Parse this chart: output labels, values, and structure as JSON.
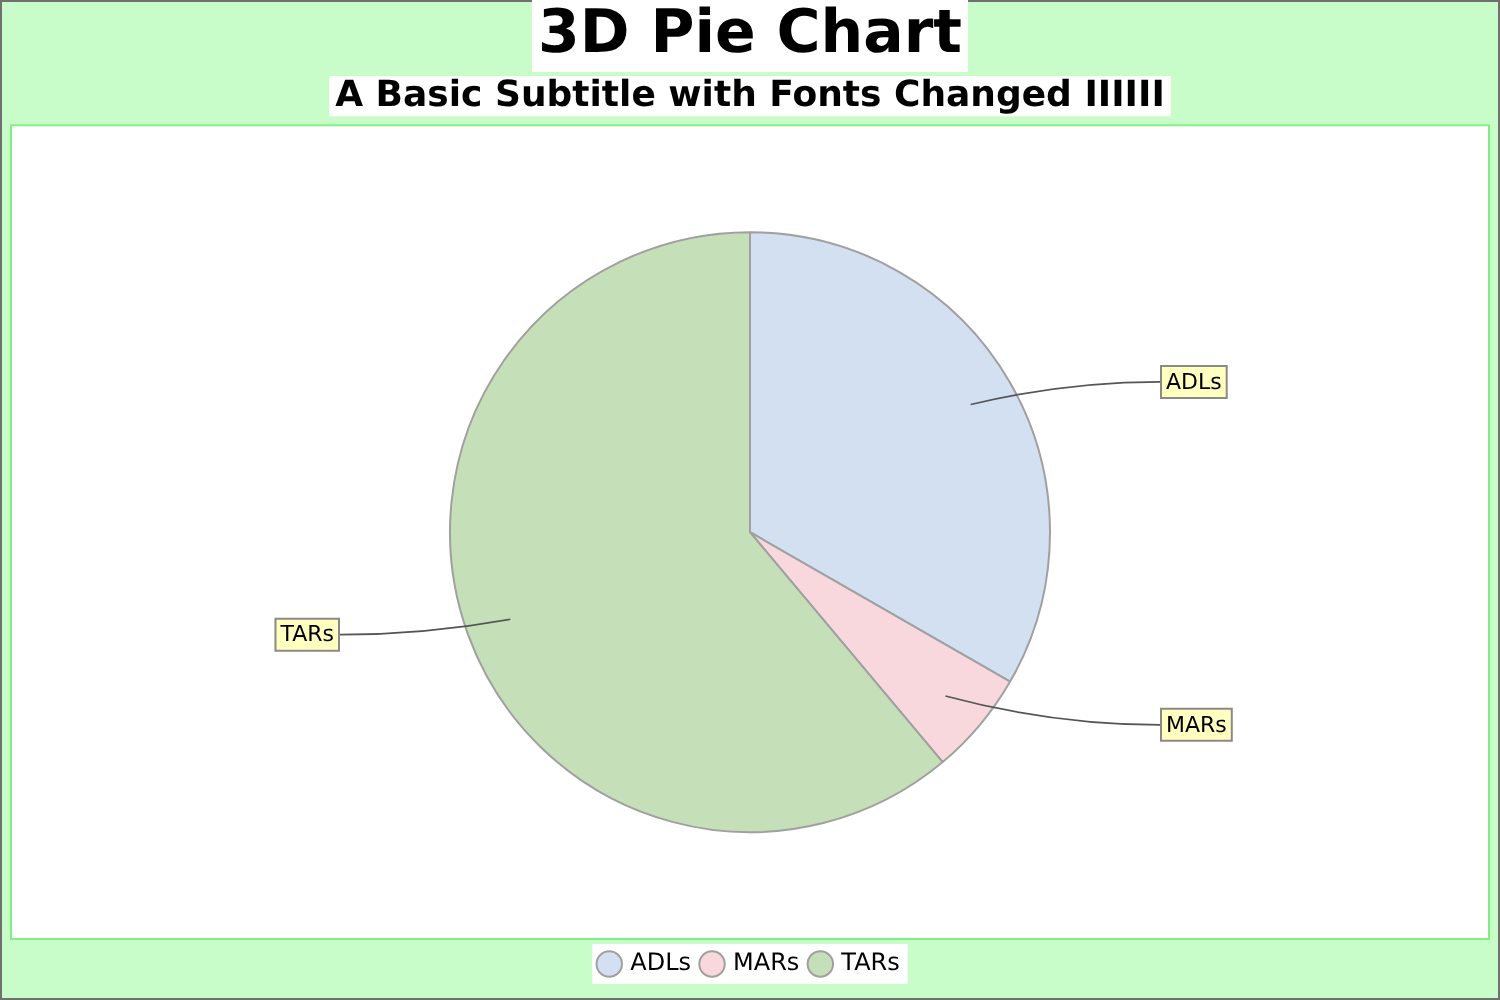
{
  "chart_data": {
    "type": "pie",
    "title": "3D Pie Chart",
    "subtitle": "A Basic Subtitle with Fonts Changed IIIIII",
    "categories": [
      "ADLs",
      "MARs",
      "TARs"
    ],
    "values": [
      33.3,
      5.6,
      61.1
    ],
    "colors": [
      "#d2e0f2",
      "#f8d8dc",
      "#c5dfb9"
    ],
    "legend": "bottom"
  }
}
